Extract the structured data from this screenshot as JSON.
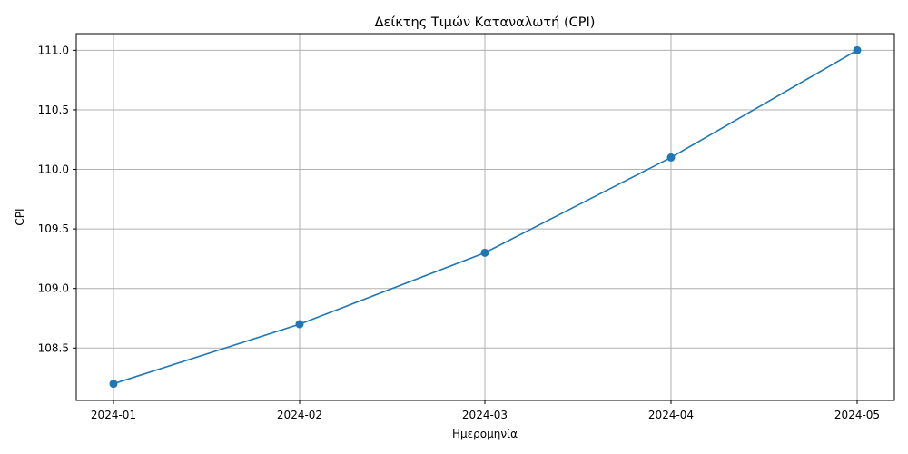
{
  "chart_data": {
    "type": "line",
    "title": "Δείκτης Τιμών Καταναλωτή (CPI)",
    "xlabel": "Ημερομηνία",
    "ylabel": "CPI",
    "x": [
      "2024-01",
      "2024-02",
      "2024-03",
      "2024-04",
      "2024-05"
    ],
    "series": [
      {
        "values": [
          108.2,
          108.7,
          109.3,
          110.1,
          111.0
        ],
        "color": "#1f77b4",
        "marker": "circle"
      }
    ],
    "x_ticks": [
      "2024-01",
      "2024-02",
      "2024-03",
      "2024-04",
      "2024-05"
    ],
    "y_ticks": [
      "108.5",
      "109.0",
      "109.5",
      "110.0",
      "110.5",
      "111.0"
    ],
    "ylim": [
      108.06,
      111.14
    ],
    "grid": true,
    "grid_color": "#b0b0b0"
  }
}
